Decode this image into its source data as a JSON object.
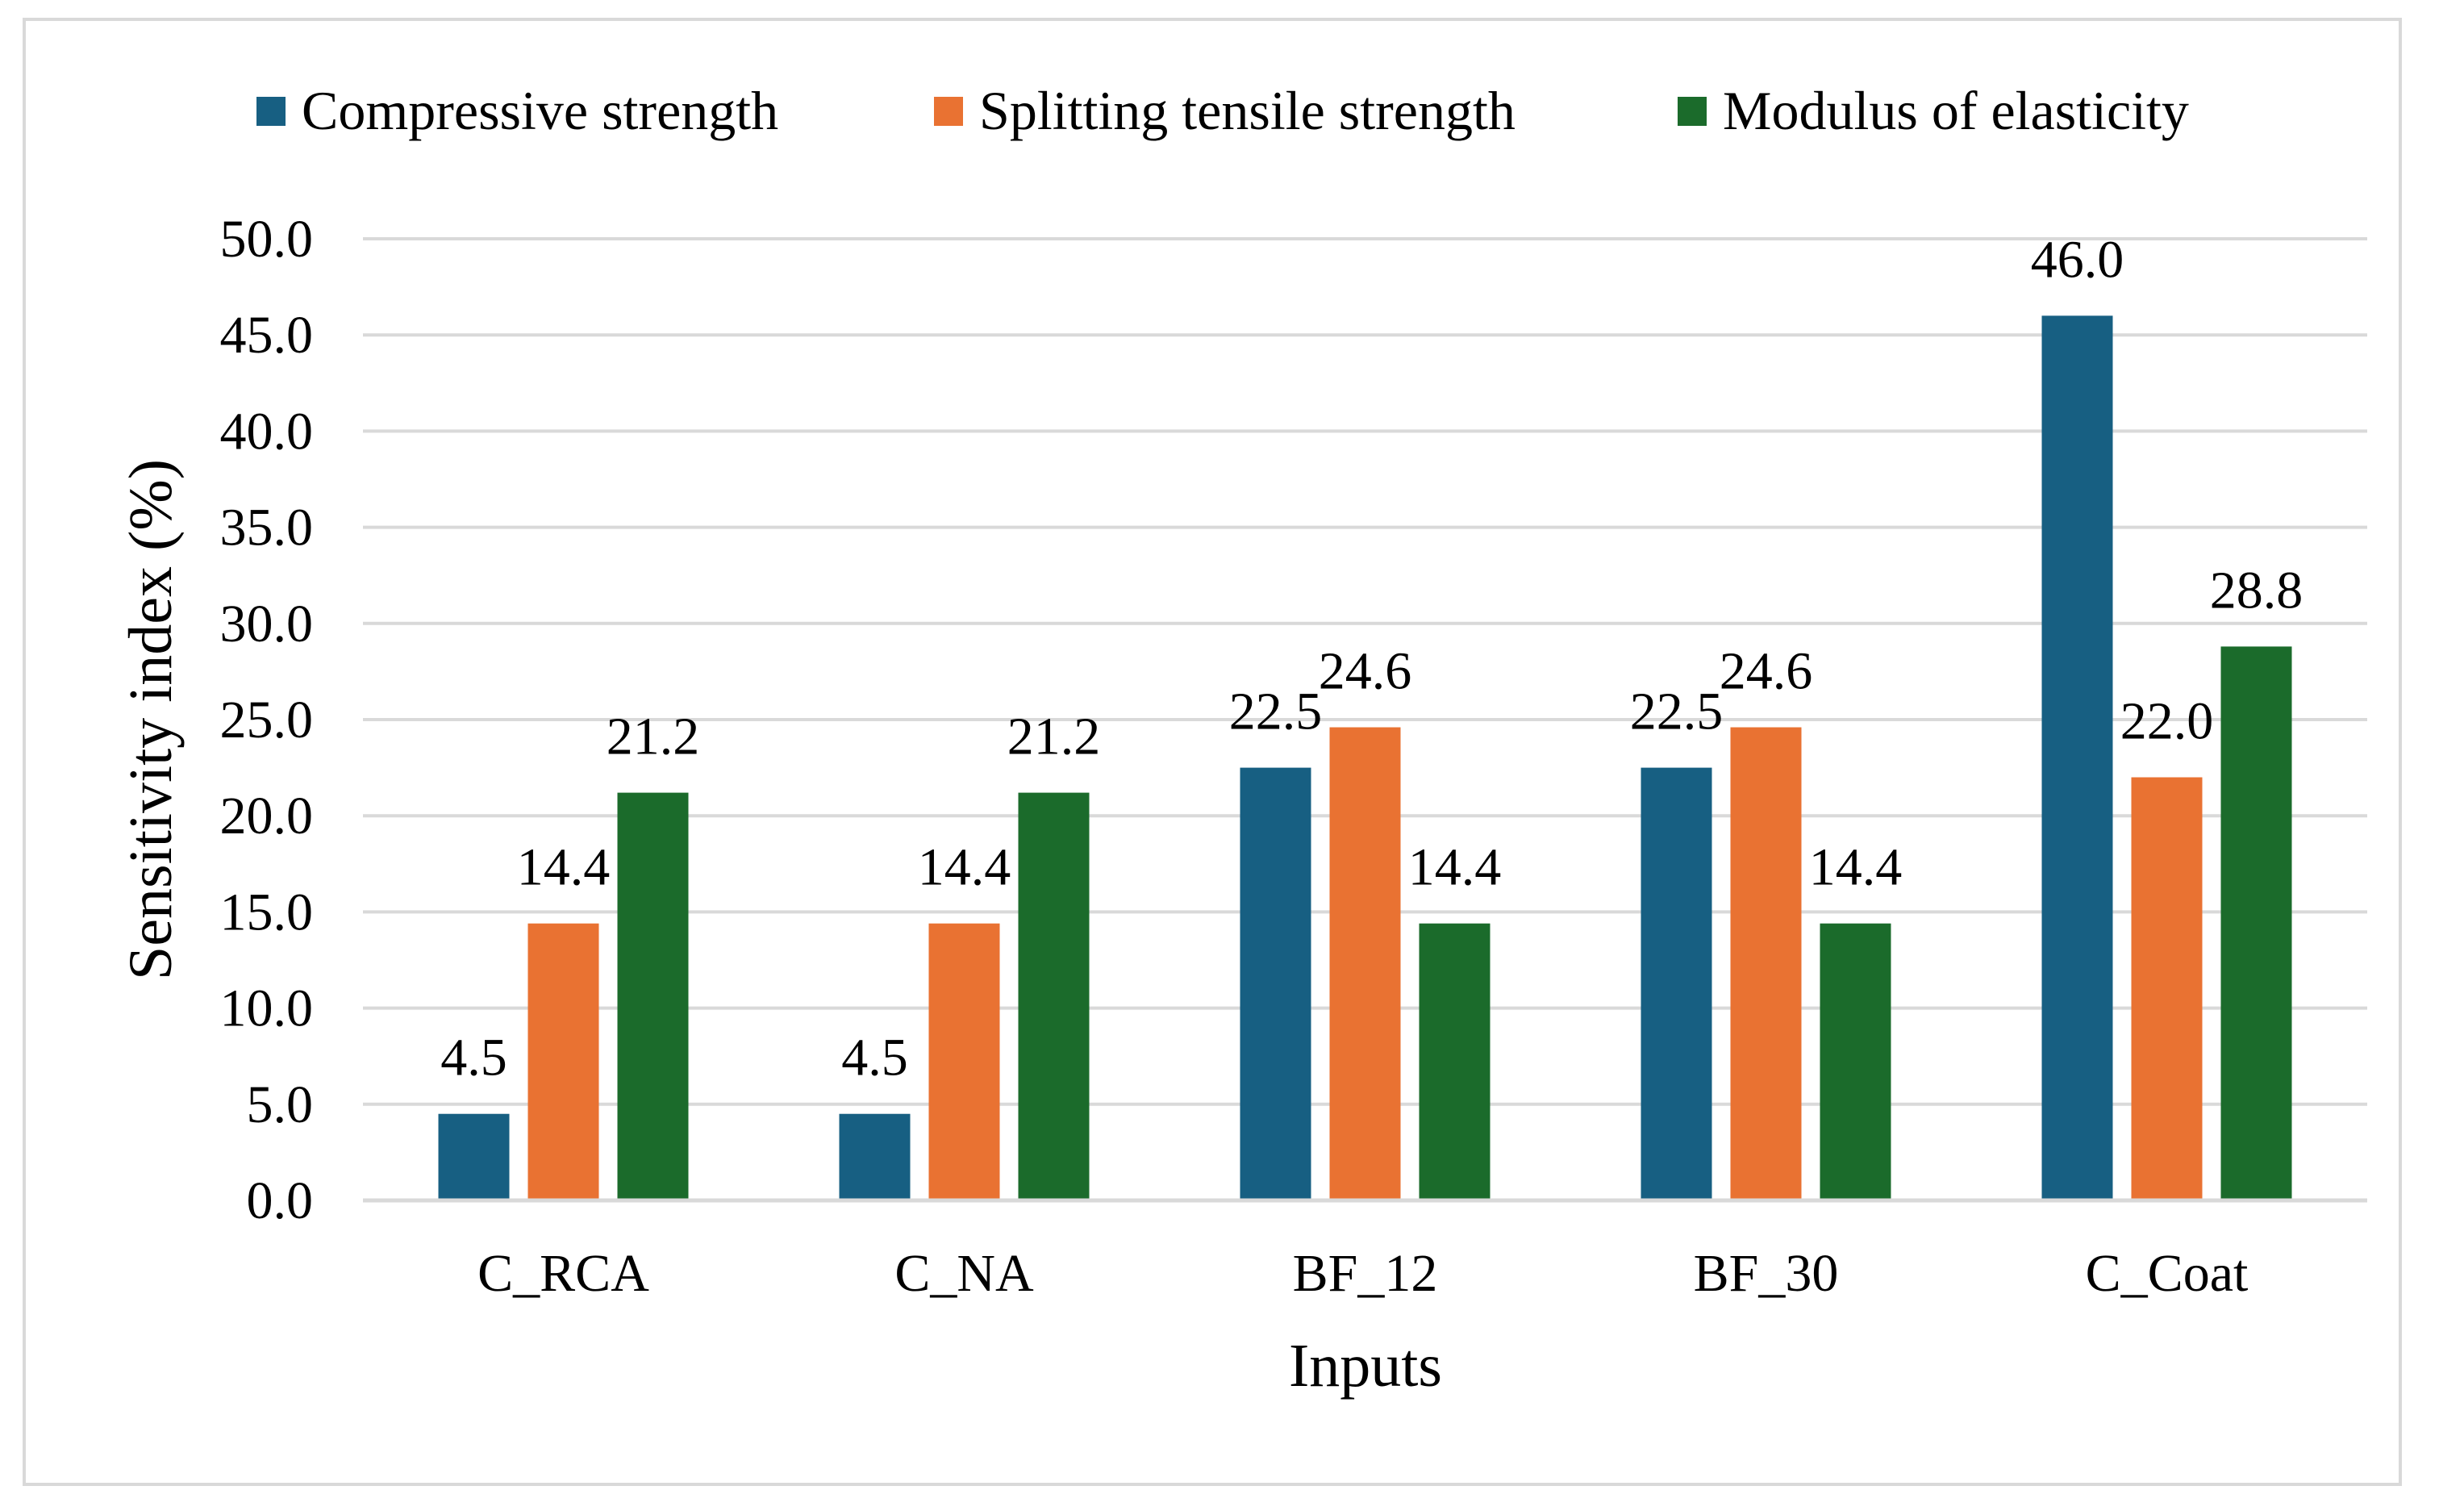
{
  "chart_data": {
    "type": "bar",
    "title": "",
    "xlabel": "Inputs",
    "ylabel": "Sensitivity index (%)",
    "categories": [
      "C_RCA",
      "C_NA",
      "BF_12",
      "BF_30",
      "C_Coat"
    ],
    "series": [
      {
        "name": "Compressive strength",
        "color": "#175f82",
        "values": [
          4.5,
          4.5,
          22.5,
          22.5,
          46.0
        ]
      },
      {
        "name": "Splitting tensile strength",
        "color": "#e97232",
        "values": [
          14.4,
          14.4,
          24.6,
          24.6,
          22.0
        ]
      },
      {
        "name": "Modulus of elasticity",
        "color": "#1b6b2b",
        "values": [
          21.2,
          21.2,
          14.4,
          14.4,
          28.8
        ]
      }
    ],
    "ylim": [
      0,
      50
    ],
    "yticks": [
      "0.0",
      "5.0",
      "10.0",
      "15.0",
      "20.0",
      "25.0",
      "30.0",
      "35.0",
      "40.0",
      "45.0",
      "50.0"
    ],
    "data_labels": [
      [
        "4.5",
        "4.5",
        "22.5",
        "22.5",
        "46.0"
      ],
      [
        "14.4",
        "14.4",
        "24.6",
        "24.6",
        "22.0"
      ],
      [
        "21.2",
        "21.2",
        "14.4",
        "14.4",
        "28.8"
      ]
    ],
    "grid": true,
    "gridline_color": "#d9d9d9",
    "legend_position": "top"
  }
}
